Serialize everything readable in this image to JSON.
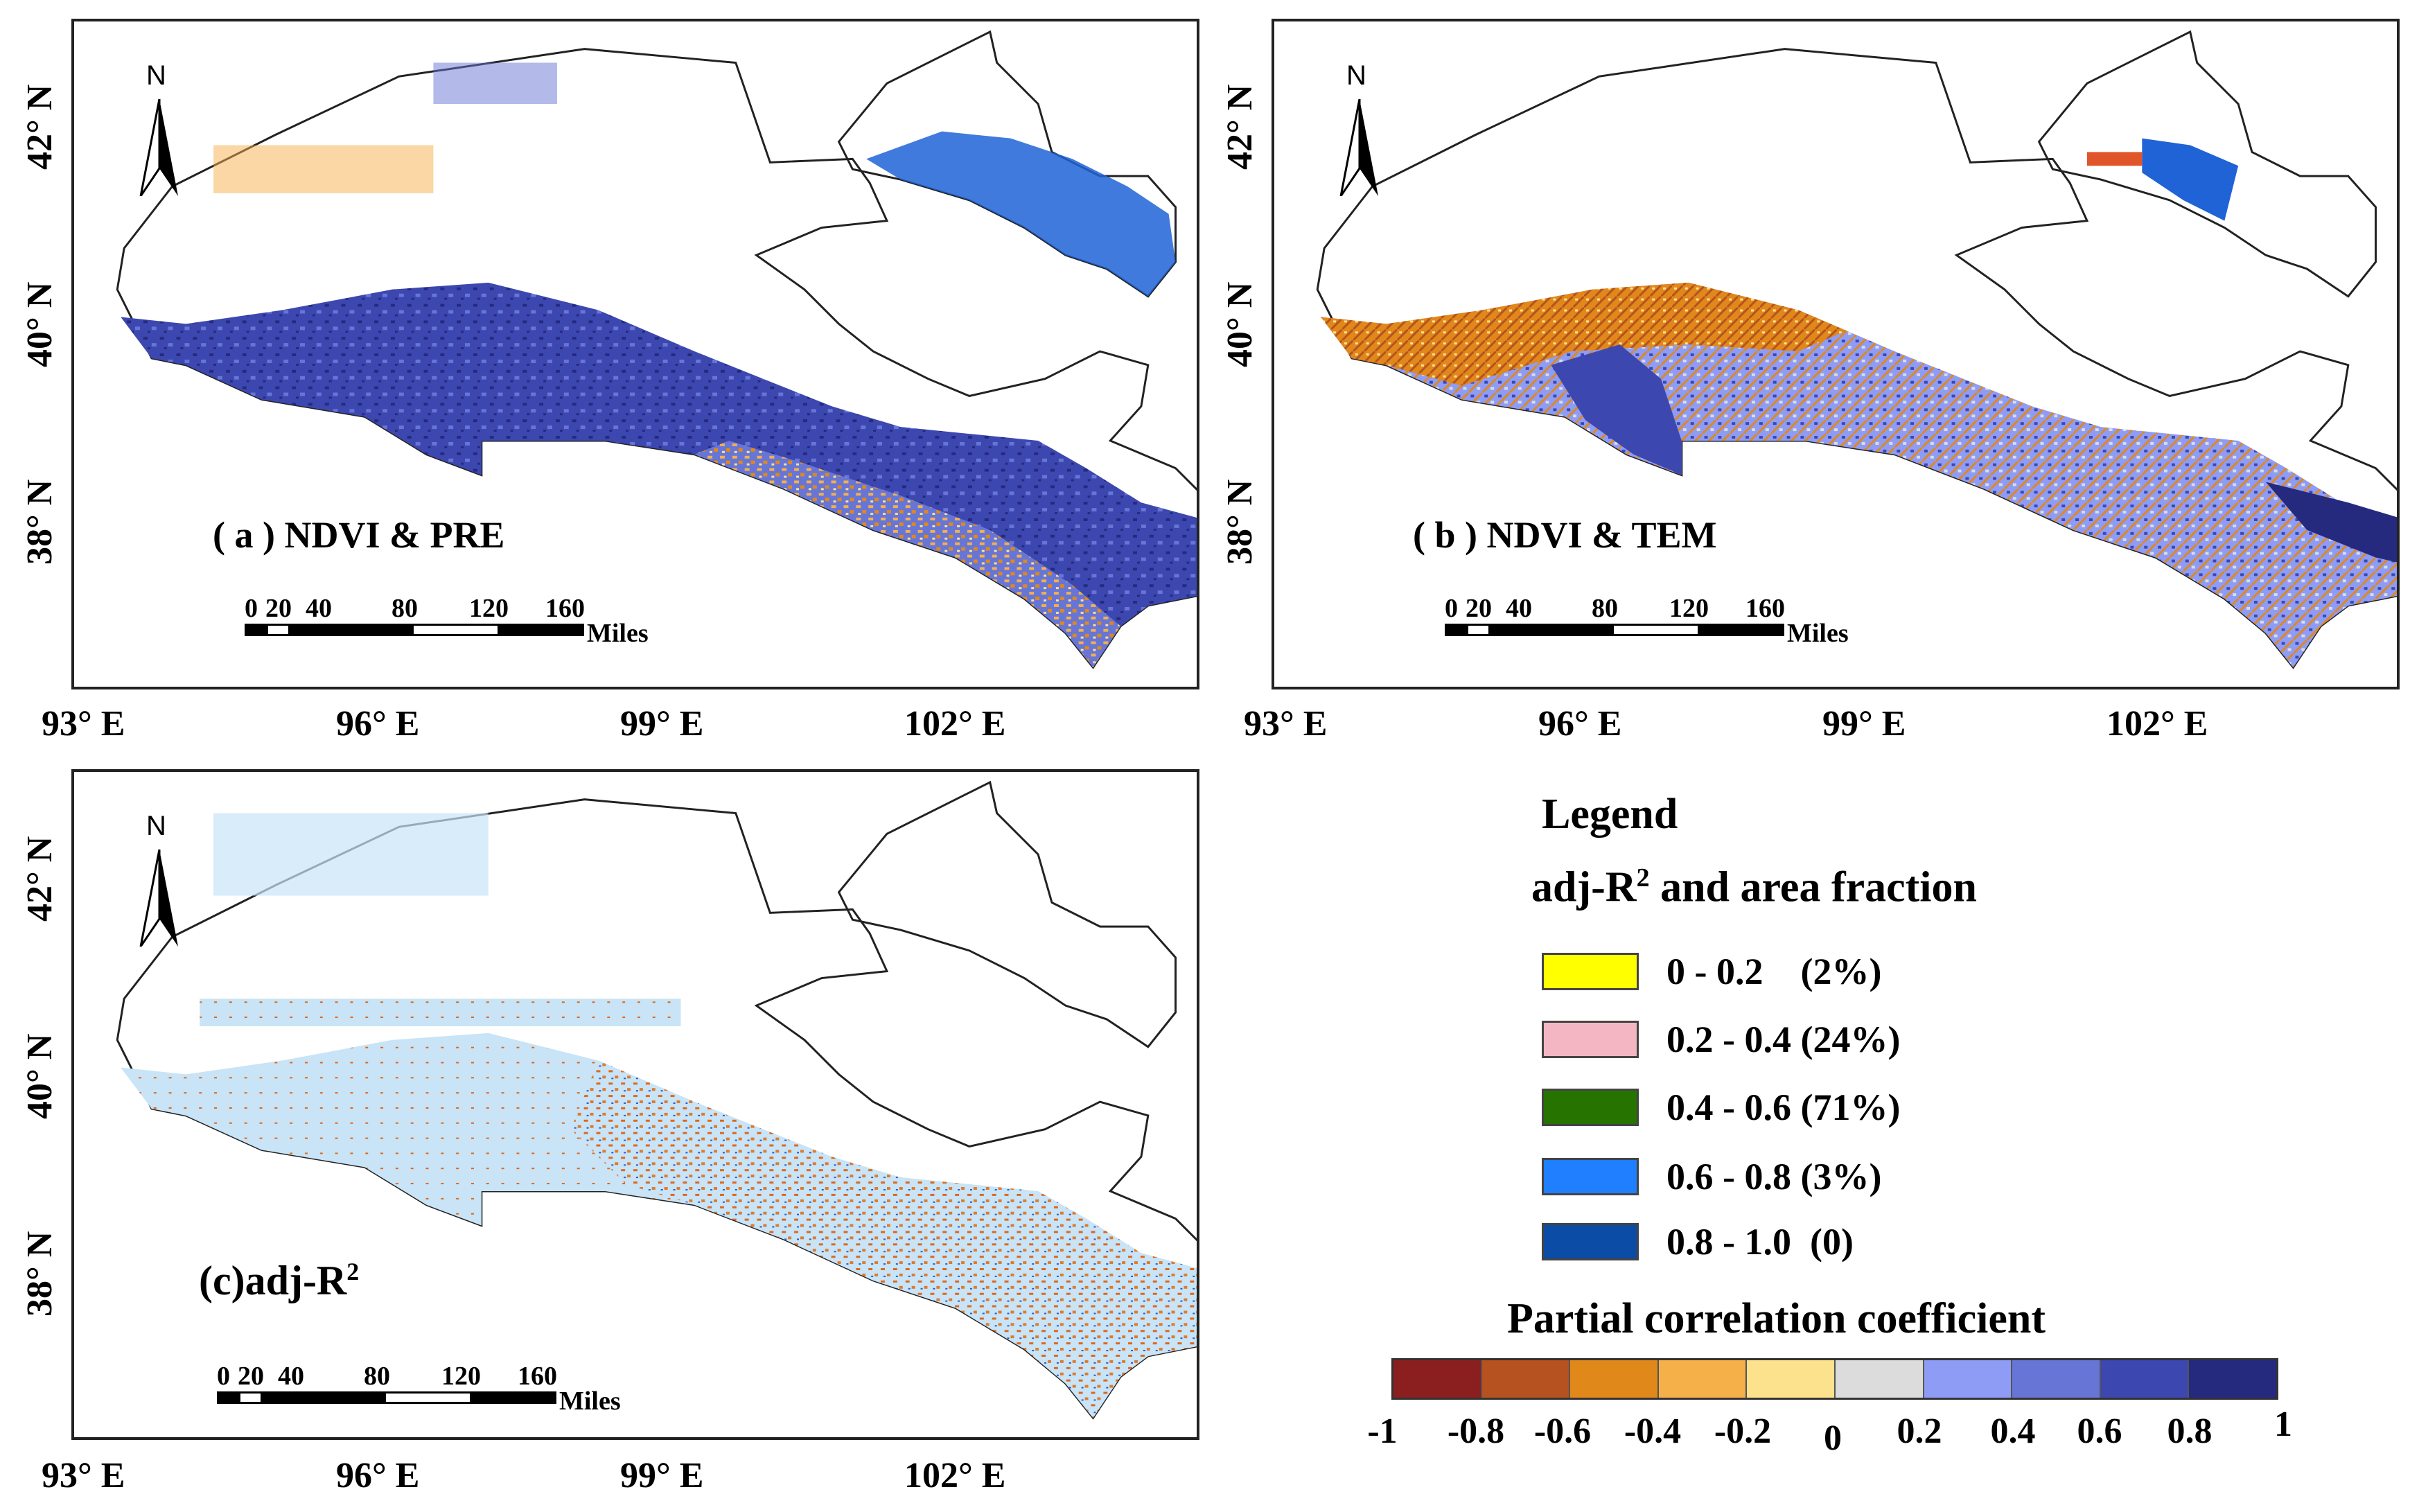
{
  "panels": {
    "a": {
      "title": "( a ) NDVI & PRE"
    },
    "b": {
      "title": "( b ) NDVI & TEM"
    },
    "c": {
      "title_main": "(c)adj-R",
      "title_sup": "2"
    }
  },
  "axes": {
    "lon_labels": [
      "93° E",
      "96° E",
      "99° E",
      "102° E"
    ],
    "lat_labels": [
      "42° N",
      "40° N",
      "38° N"
    ]
  },
  "north_arrow": {
    "label": "N"
  },
  "scale_bar": {
    "ticks": [
      "0",
      "20",
      "40",
      "80",
      "120",
      "160"
    ],
    "unit": "Miles"
  },
  "legend": {
    "title": "Legend",
    "subtitle_main": "adj-R",
    "subtitle_sup": "2",
    "subtitle_rest": " and area fraction",
    "items": [
      {
        "label": "0 - 0.2    (2%)",
        "color": "#ffff00"
      },
      {
        "label": "0.2 - 0.4 (24%)",
        "color": "#f4b6c2"
      },
      {
        "label": "0.4 - 0.6 (71%)",
        "color": "#267300"
      },
      {
        "label": "0.6 - 0.8 (3%)",
        "color": "#1f7fff"
      },
      {
        "label": "0.8 - 1.0  (0)",
        "color": "#0a4ca6"
      }
    ]
  },
  "colorbar": {
    "title": "Partial correlation coefficient",
    "colors": [
      "#8b1f1f",
      "#b65120",
      "#e0881a",
      "#f5b04a",
      "#fde28e",
      "#dcdcdc",
      "#8f9cf5",
      "#6776d6",
      "#3d47b0",
      "#252a7e"
    ],
    "ticks": [
      "-1",
      "-0.8",
      "-0.6",
      "-0.4",
      "-0.2",
      "0",
      "0.2",
      "0.4",
      "0.6",
      "0.8",
      "1"
    ]
  }
}
